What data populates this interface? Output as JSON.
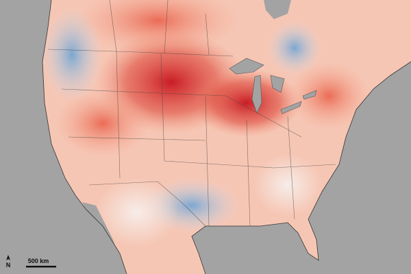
{
  "north_arrow": {
    "label": "N"
  },
  "scale_bar": {
    "label": "500 km"
  }
}
